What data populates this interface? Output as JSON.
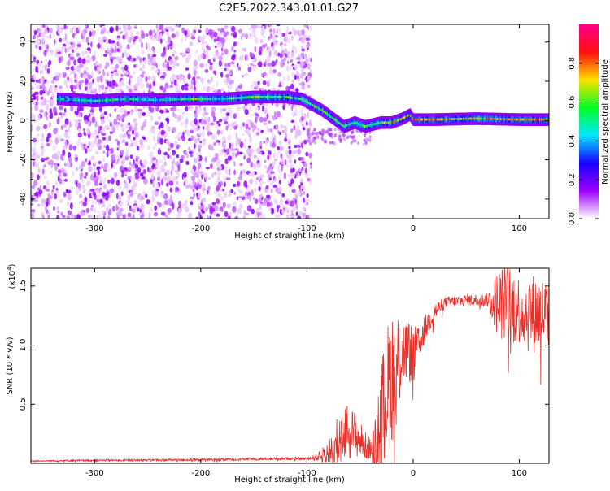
{
  "title": "C2E5.2022.343.01.01.G27",
  "chart_data": [
    {
      "type": "heatmap",
      "xlabel": "Height of straight line (km)",
      "ylabel": "Frequency (Hz)",
      "xlim": [
        -360,
        128
      ],
      "ylim": [
        -50,
        49
      ],
      "xticks": [
        -300,
        -200,
        -100,
        0,
        100
      ],
      "yticks": [
        -40,
        -20,
        0,
        20,
        40
      ],
      "colorbar": {
        "label": "Normalized spectral amplitude",
        "range": [
          0.0,
          1.0
        ],
        "ticks": [
          0.0,
          0.2,
          0.4,
          0.6,
          0.8
        ],
        "colors": [
          "#ffffff",
          "#9c00ff",
          "#1a00ff",
          "#00e8ff",
          "#00ff20",
          "#ffe000",
          "#ff1010",
          "#ff008c"
        ]
      },
      "ridge": {
        "x": [
          -330,
          -300,
          -270,
          -240,
          -210,
          -180,
          -150,
          -120,
          -105,
          -95,
          -85,
          -75,
          -65,
          -55,
          -45,
          -38,
          -30,
          -20,
          -10,
          -3,
          0,
          20,
          60,
          100,
          128
        ],
        "frequency": [
          11,
          10,
          11,
          10.5,
          11,
          11,
          12,
          12,
          11,
          8,
          5,
          1,
          -3,
          -1,
          -3,
          -2,
          -1,
          -1,
          1,
          3,
          0.5,
          0.5,
          1,
          0.5,
          0.5
        ],
        "amplitude": [
          0.4,
          0.5,
          0.45,
          0.45,
          0.55,
          0.5,
          0.6,
          0.5,
          0.5,
          0.55,
          0.5,
          0.55,
          0.5,
          0.55,
          0.5,
          0.55,
          0.6,
          0.75,
          0.7,
          0.75,
          0.85,
          0.75,
          0.7,
          0.75,
          0.7
        ]
      },
      "noise_region_x": [
        -360,
        -100
      ]
    },
    {
      "type": "line",
      "xlabel": "Height of straight line (km)",
      "ylabel": "SNR (10 * v/v)",
      "y_multiplier": "(x10",
      "y_multiplier_exp": "4",
      "y_multiplier_close": ")",
      "xlim": [
        -360,
        128
      ],
      "ylim": [
        0,
        1.65
      ],
      "xticks": [
        -300,
        -200,
        -100,
        0,
        100
      ],
      "yticks": [
        0.5,
        1.0,
        1.5
      ],
      "series": [
        {
          "color": "#e8302a",
          "x": [
            -360,
            -300,
            -200,
            -120,
            -100,
            -90,
            -80,
            -75,
            -70,
            -65,
            -55,
            -45,
            -40,
            -35,
            -30,
            -25,
            -20,
            -15,
            -12,
            -10,
            -5,
            0,
            5,
            10,
            20,
            30,
            50,
            70,
            80,
            90,
            100,
            110,
            128
          ],
          "y": [
            0.02,
            0.025,
            0.03,
            0.04,
            0.04,
            0.05,
            0.08,
            0.12,
            0.22,
            0.28,
            0.25,
            0.15,
            0.12,
            0.15,
            0.4,
            0.6,
            0.75,
            0.85,
            0.9,
            0.95,
            0.95,
            0.92,
            1.0,
            1.12,
            1.28,
            1.36,
            1.38,
            1.38,
            1.36,
            1.35,
            1.3,
            1.27,
            1.27
          ],
          "noise": [
            0.006,
            0.008,
            0.01,
            0.012,
            0.012,
            0.03,
            0.12,
            0.22,
            0.28,
            0.26,
            0.2,
            0.12,
            0.1,
            0.25,
            0.45,
            0.55,
            0.6,
            0.5,
            0.4,
            0.3,
            0.28,
            0.25,
            0.15,
            0.12,
            0.08,
            0.05,
            0.05,
            0.06,
            0.3,
            0.35,
            0.3,
            0.35,
            0.3
          ]
        }
      ]
    }
  ]
}
